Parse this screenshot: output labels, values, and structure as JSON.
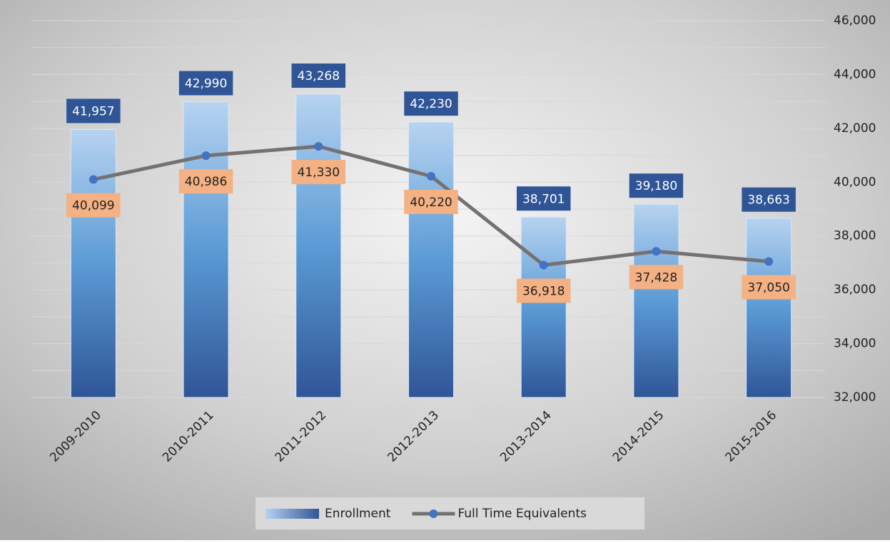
{
  "chart_data": {
    "type": "combo",
    "categories": [
      "2009-2010",
      "2010-2011",
      "2011-2012",
      "2012-2013",
      "2013-2014",
      "2014-2015",
      "2015-2016"
    ],
    "series": [
      {
        "name": "Enrollment",
        "type": "bar",
        "color": "#2f5597",
        "values": [
          41957,
          42990,
          43268,
          42230,
          38701,
          39180,
          38663
        ],
        "value_labels": [
          "41,957",
          "42,990",
          "43,268",
          "42,230",
          "38,701",
          "39,180",
          "38,663"
        ]
      },
      {
        "name": "Full Time Equivalents",
        "type": "line",
        "color": "#767171",
        "marker_color": "#4472c4",
        "values": [
          40099,
          40986,
          41330,
          40220,
          36918,
          37428,
          37050
        ],
        "value_labels": [
          "40,099",
          "40,986",
          "41,330",
          "40,220",
          "36,918",
          "37,428",
          "37,050"
        ]
      }
    ],
    "ylim": [
      32000,
      46000
    ],
    "yticks": [
      {
        "value": 32000,
        "label": "32,000"
      },
      {
        "value": 34000,
        "label": "34,000"
      },
      {
        "value": 36000,
        "label": "36,000"
      },
      {
        "value": 38000,
        "label": "38,000"
      },
      {
        "value": 40000,
        "label": "40,000"
      },
      {
        "value": 42000,
        "label": "42,000"
      },
      {
        "value": 44000,
        "label": "44,000"
      },
      {
        "value": 46000,
        "label": "46,000"
      }
    ],
    "y_minor_ticks": [
      33000,
      35000,
      37000,
      39000,
      41000,
      43000,
      45000
    ],
    "y_axis_side": "right",
    "grid": true,
    "legend": "bottom"
  }
}
